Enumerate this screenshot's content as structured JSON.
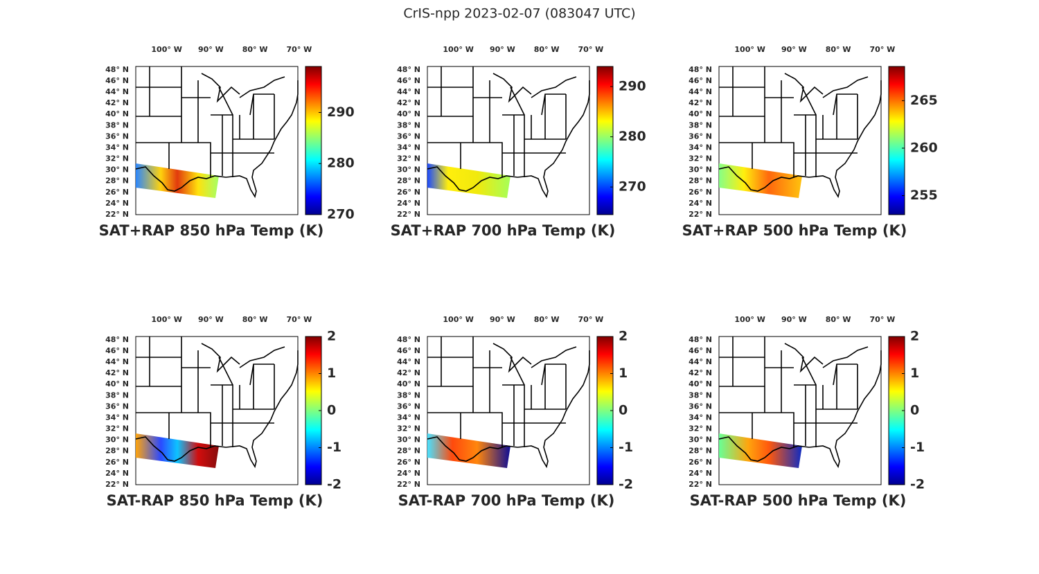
{
  "title": "CrIS-npp 2023-02-07 (083047 UTC)",
  "map": {
    "xlim": [
      -107,
      -70.3
    ],
    "ylim": [
      22,
      48.6
    ],
    "lon_ticks": [
      {
        "value": -100,
        "label": "100° W"
      },
      {
        "value": -90,
        "label": "90° W"
      },
      {
        "value": -80,
        "label": "80° W"
      },
      {
        "value": -70,
        "label": "70° W"
      }
    ],
    "lat_ticks": [
      {
        "value": 22,
        "label": "22° N"
      },
      {
        "value": 24,
        "label": "24° N"
      },
      {
        "value": 26,
        "label": "26° N"
      },
      {
        "value": 28,
        "label": "28° N"
      },
      {
        "value": 30,
        "label": "30° N"
      },
      {
        "value": 32,
        "label": "32° N"
      },
      {
        "value": 34,
        "label": "34° N"
      },
      {
        "value": 36,
        "label": "36° N"
      },
      {
        "value": 38,
        "label": "38° N"
      },
      {
        "value": 40,
        "label": "40° N"
      },
      {
        "value": 42,
        "label": "42° N"
      },
      {
        "value": 44,
        "label": "44° N"
      },
      {
        "value": 46,
        "label": "46° N"
      },
      {
        "value": 48,
        "label": "48° N"
      }
    ]
  },
  "panels": [
    {
      "title": "SAT+RAP 850 hPa Temp (K)",
      "clim": [
        270,
        299
      ],
      "cticks": [
        270,
        280,
        290
      ]
    },
    {
      "title": "SAT+RAP 700 hPa Temp (K)",
      "clim": [
        264.5,
        294
      ],
      "cticks": [
        270,
        280,
        290
      ]
    },
    {
      "title": "SAT+RAP 500 hPa Temp (K)",
      "clim": [
        253,
        268.6
      ],
      "cticks": [
        255,
        260,
        265
      ]
    },
    {
      "title": "SAT-RAP 850 hPa Temp (K)",
      "clim": [
        -2,
        2
      ],
      "cticks": [
        -2,
        -1,
        0,
        1,
        2
      ]
    },
    {
      "title": "SAT-RAP 700 hPa Temp (K)",
      "clim": [
        -2,
        2
      ],
      "cticks": [
        -2,
        -1,
        0,
        1,
        2
      ]
    },
    {
      "title": "SAT-RAP 500 hPa Temp (K)",
      "clim": [
        -2,
        2
      ],
      "cticks": [
        -2,
        -1,
        0,
        1,
        2
      ]
    }
  ]
}
